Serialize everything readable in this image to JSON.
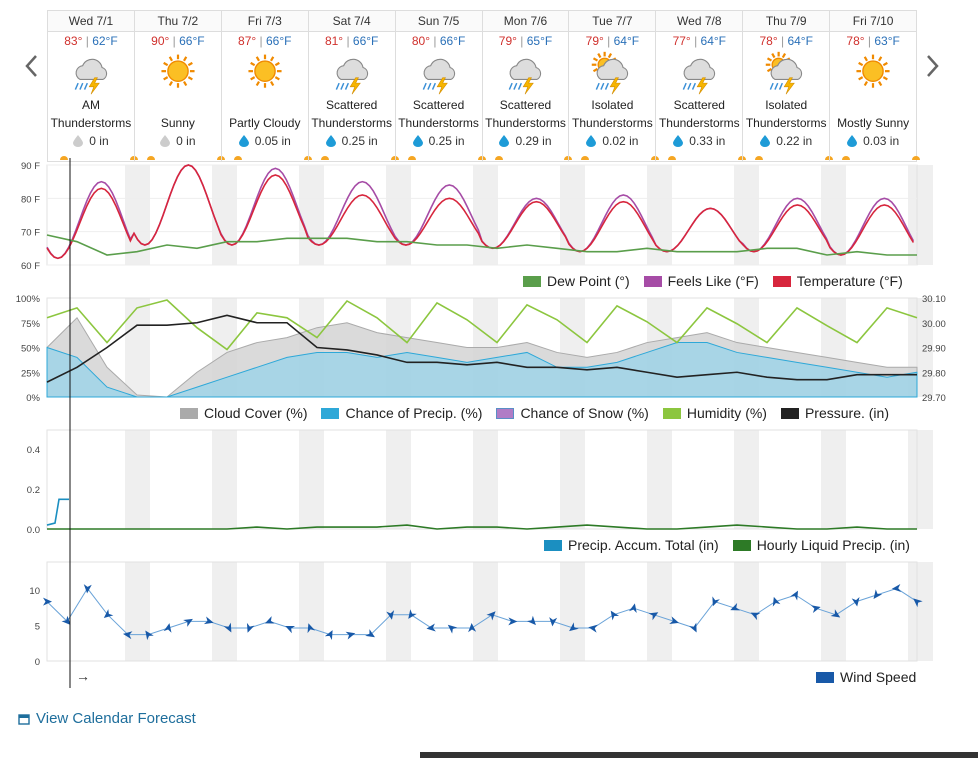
{
  "nav": {
    "prev_icon": "chevron-left-icon",
    "next_icon": "chevron-right-icon"
  },
  "days": [
    {
      "label": "Wed 7/1",
      "hi": "83°",
      "lo": "62°F",
      "icon": "thunderstorm-icon",
      "cond": [
        "AM",
        "Thunderstorms"
      ],
      "precip": "0 in",
      "drop": "gray"
    },
    {
      "label": "Thu 7/2",
      "hi": "90°",
      "lo": "66°F",
      "icon": "sun-icon",
      "cond": [
        "",
        "Sunny"
      ],
      "precip": "0 in",
      "drop": "gray"
    },
    {
      "label": "Fri 7/3",
      "hi": "87°",
      "lo": "66°F",
      "icon": "sun-icon",
      "cond": [
        "",
        "Partly Cloudy"
      ],
      "precip": "0.05 in",
      "drop": "blue"
    },
    {
      "label": "Sat 7/4",
      "hi": "81°",
      "lo": "66°F",
      "icon": "thunderstorm-icon",
      "cond": [
        "Scattered",
        "Thunderstorms"
      ],
      "precip": "0.25 in",
      "drop": "blue"
    },
    {
      "label": "Sun 7/5",
      "hi": "80°",
      "lo": "66°F",
      "icon": "thunderstorm-icon",
      "cond": [
        "Scattered",
        "Thunderstorms"
      ],
      "precip": "0.25 in",
      "drop": "blue"
    },
    {
      "label": "Mon 7/6",
      "hi": "79°",
      "lo": "65°F",
      "icon": "thunderstorm-icon",
      "cond": [
        "Scattered",
        "Thunderstorms"
      ],
      "precip": "0.29 in",
      "drop": "blue"
    },
    {
      "label": "Tue 7/7",
      "hi": "79°",
      "lo": "64°F",
      "icon": "sun-thunderstorm-icon",
      "cond": [
        "Isolated",
        "Thunderstorms"
      ],
      "precip": "0.02 in",
      "drop": "blue"
    },
    {
      "label": "Wed 7/8",
      "hi": "77°",
      "lo": "64°F",
      "icon": "thunderstorm-icon",
      "cond": [
        "Scattered",
        "Thunderstorms"
      ],
      "precip": "0.33 in",
      "drop": "blue"
    },
    {
      "label": "Thu 7/9",
      "hi": "78°",
      "lo": "64°F",
      "icon": "sun-thunderstorm-icon",
      "cond": [
        "Isolated",
        "Thunderstorms"
      ],
      "precip": "0.22 in",
      "drop": "blue"
    },
    {
      "label": "Fri 7/10",
      "hi": "78°",
      "lo": "63°F",
      "icon": "sun-icon",
      "cond": [
        "",
        "Mostly Sunny"
      ],
      "precip": "0.03 in",
      "drop": "blue"
    }
  ],
  "colors": {
    "temperature": "#d7263d",
    "feels_like": "#a64ca6",
    "dew_point": "#5a9e4b",
    "cloud": "#aaaaaa",
    "precip_chance": "#2ea8d8",
    "snow": "#b07cc6",
    "humidity": "#8cc63f",
    "pressure": "#222222",
    "accum": "#1b8fc1",
    "hourly": "#2d7a26",
    "wind": "#1859a8"
  },
  "legends": {
    "temp": [
      "Dew Point (°)",
      "Feels Like (°F)",
      "Temperature (°F)"
    ],
    "mid": [
      "Cloud Cover (%)",
      "Chance of Precip. (%)",
      "Chance of Snow (%)",
      "Humidity (%)",
      "Pressure. (in)"
    ],
    "precip": [
      "Precip. Accum. Total (in)",
      "Hourly Liquid Precip. (in)"
    ],
    "wind": [
      "Wind Speed"
    ]
  },
  "chart_data": [
    {
      "type": "line",
      "y_ticks": [
        "90 F",
        "80 F",
        "70 F",
        "60 F"
      ],
      "ylim": [
        60,
        90
      ],
      "series": [
        {
          "name": "Temperature (°F)",
          "daily_hi": [
            83,
            90,
            87,
            81,
            80,
            79,
            79,
            77,
            78,
            78
          ],
          "daily_lo": [
            62,
            66,
            66,
            66,
            66,
            65,
            64,
            64,
            64,
            63
          ]
        },
        {
          "name": "Feels Like (°F)",
          "daily_hi": [
            85,
            90,
            89,
            85,
            84,
            80,
            81,
            77,
            80,
            80
          ],
          "daily_lo": [
            62,
            66,
            66,
            66,
            66,
            65,
            64,
            64,
            64,
            63
          ]
        },
        {
          "name": "Dew Point (°)",
          "values": [
            69,
            67,
            63,
            64,
            66,
            65,
            67,
            67,
            68,
            68,
            68,
            67,
            67,
            66,
            66,
            65,
            66,
            65,
            64,
            64,
            65,
            64,
            64,
            64,
            65,
            65,
            63,
            64,
            63,
            63
          ]
        }
      ]
    },
    {
      "type": "line",
      "y_ticks": [
        "100%",
        "75%",
        "50%",
        "25%",
        "0%"
      ],
      "ylim": [
        0,
        100
      ],
      "y2_ticks": [
        "30.10",
        "30.00",
        "29.90",
        "29.80",
        "29.70"
      ],
      "y2lim": [
        29.7,
        30.1
      ],
      "series": [
        {
          "name": "Cloud Cover (%)",
          "values": [
            50,
            80,
            30,
            2,
            0,
            25,
            45,
            55,
            60,
            70,
            75,
            65,
            60,
            55,
            50,
            50,
            55,
            45,
            40,
            45,
            55,
            60,
            65,
            55,
            50,
            45,
            40,
            35,
            30,
            30
          ]
        },
        {
          "name": "Chance of Precip. (%)",
          "values": [
            50,
            40,
            10,
            0,
            0,
            10,
            20,
            30,
            40,
            45,
            45,
            40,
            45,
            40,
            35,
            40,
            45,
            30,
            30,
            35,
            45,
            55,
            55,
            45,
            40,
            35,
            30,
            25,
            20,
            25
          ]
        },
        {
          "name": "Humidity (%)",
          "values": [
            80,
            90,
            55,
            90,
            98,
            70,
            48,
            85,
            80,
            60,
            97,
            80,
            55,
            95,
            78,
            55,
            93,
            78,
            55,
            92,
            76,
            55,
            90,
            74,
            55,
            90,
            72,
            55,
            90,
            80
          ]
        },
        {
          "name": "Pressure. (in)",
          "values": [
            29.76,
            29.82,
            29.9,
            29.99,
            29.99,
            30.0,
            30.03,
            30.0,
            30.0,
            29.9,
            29.89,
            29.87,
            29.84,
            29.84,
            29.83,
            29.84,
            29.82,
            29.82,
            29.81,
            29.82,
            29.8,
            29.78,
            29.79,
            29.8,
            29.78,
            29.77,
            29.77,
            29.79,
            29.79,
            29.79
          ]
        }
      ]
    },
    {
      "type": "line",
      "y_ticks": [
        "0.4",
        "0.2",
        "0.0"
      ],
      "ylim": [
        0,
        0.5
      ],
      "series": [
        {
          "name": "Precip. Accum. Total (in)",
          "values": [
            0.02,
            0.15,
            0.15
          ]
        },
        {
          "name": "Hourly Liquid Precip. (in)",
          "values": [
            0,
            0,
            0,
            0,
            0,
            0,
            0,
            0.01,
            0,
            0.01,
            0.01,
            0.01,
            0.02,
            0,
            0.01,
            0.01,
            0,
            0.01,
            0.02,
            0.01,
            0,
            0,
            0.01,
            0.02,
            0.01,
            0,
            0,
            0.01,
            0,
            0
          ]
        }
      ]
    },
    {
      "type": "line",
      "y_ticks": [
        "10",
        "5",
        "0"
      ],
      "ylim": [
        0,
        15
      ],
      "series": [
        {
          "name": "Wind Speed",
          "values": [
            9,
            6,
            11,
            7,
            4,
            4,
            5,
            6,
            6,
            5,
            5,
            6,
            5,
            5,
            4,
            4,
            4,
            7,
            7,
            5,
            5,
            5,
            7,
            6,
            6,
            6,
            5,
            5,
            7,
            8,
            7,
            6,
            5,
            9,
            8,
            7,
            9,
            10,
            8,
            7,
            9,
            10,
            11,
            9
          ]
        }
      ]
    }
  ],
  "link": {
    "label": "View Calendar Forecast",
    "icon": "calendar-icon"
  },
  "wind_arrow": "→"
}
